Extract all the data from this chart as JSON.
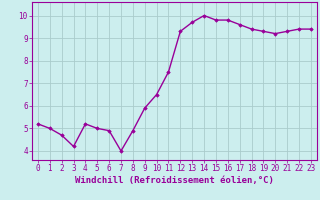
{
  "x": [
    0,
    1,
    2,
    3,
    4,
    5,
    6,
    7,
    8,
    9,
    10,
    11,
    12,
    13,
    14,
    15,
    16,
    17,
    18,
    19,
    20,
    21,
    22,
    23
  ],
  "y": [
    5.2,
    5.0,
    4.7,
    4.2,
    5.2,
    5.0,
    4.9,
    4.0,
    4.9,
    5.9,
    6.5,
    7.5,
    9.3,
    9.7,
    10.0,
    9.8,
    9.8,
    9.6,
    9.4,
    9.3,
    9.2,
    9.3,
    9.4,
    9.4
  ],
  "line_color": "#990099",
  "marker": "D",
  "marker_size": 1.8,
  "bg_color": "#cceeee",
  "grid_color": "#aacccc",
  "xlabel": "Windchill (Refroidissement éolien,°C)",
  "xlabel_fontsize": 6.5,
  "ylabel_ticks": [
    4,
    5,
    6,
    7,
    8,
    9,
    10
  ],
  "xlim": [
    -0.5,
    23.5
  ],
  "ylim": [
    3.6,
    10.6
  ],
  "xtick_labels": [
    "0",
    "1",
    "2",
    "3",
    "4",
    "5",
    "6",
    "7",
    "8",
    "9",
    "10",
    "11",
    "12",
    "13",
    "14",
    "15",
    "16",
    "17",
    "18",
    "19",
    "20",
    "21",
    "22",
    "23"
  ],
  "tick_fontsize": 5.5,
  "line_width": 1.0
}
